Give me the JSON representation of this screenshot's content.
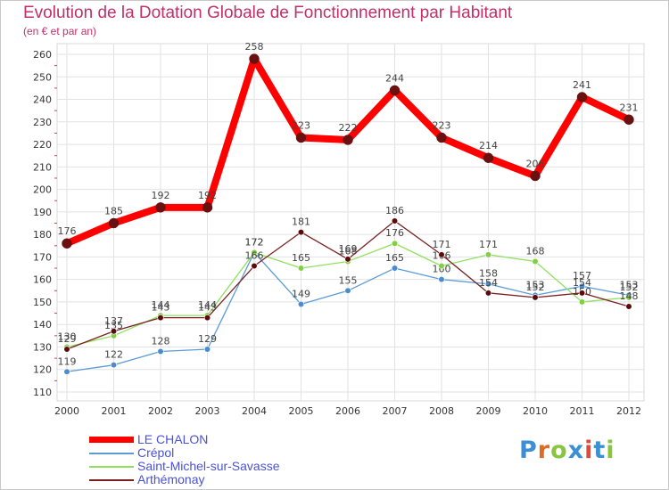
{
  "header": {
    "title": "Evolution de la Dotation Globale de Fonctionnement par Habitant",
    "subtitle": "(en € et par an)"
  },
  "logo": {
    "text": "Proxiti",
    "colors": [
      "#3a8fd6",
      "#e06a20",
      "#8ac540",
      "#3a8fd6",
      "#e04a3a",
      "#3a8fd6",
      "#8ac540"
    ]
  },
  "chart_data": {
    "type": "line",
    "x": [
      "2000",
      "2001",
      "2002",
      "2003",
      "2004",
      "2005",
      "2006",
      "2007",
      "2008",
      "2009",
      "2010",
      "2011",
      "2012"
    ],
    "ylim": [
      110,
      260
    ],
    "yticks": [
      110,
      120,
      130,
      140,
      150,
      160,
      170,
      180,
      190,
      200,
      210,
      220,
      230,
      240,
      250,
      260
    ],
    "grid": true,
    "legend": "bottom-left",
    "series": [
      {
        "name": "LE CHALON",
        "values": [
          176,
          185,
          192,
          192,
          258,
          223,
          222,
          244,
          223,
          214,
          206,
          241,
          231
        ],
        "line_color": "#ff0000",
        "marker_color": "#6b1010",
        "bold": true
      },
      {
        "name": "Crépol",
        "values": [
          119,
          122,
          128,
          129,
          172,
          149,
          155,
          165,
          160,
          158,
          153,
          157,
          153
        ],
        "line_color": "#5b9bd5",
        "marker_color": "#4a8ccf",
        "bold": false
      },
      {
        "name": "Saint-Michel-sur-Savasse",
        "values": [
          130,
          135,
          144,
          144,
          172,
          165,
          168,
          176,
          166,
          171,
          168,
          150,
          152
        ],
        "line_color": "#90e060",
        "marker_color": "#80d040",
        "bold": false
      },
      {
        "name": "Arthémonay",
        "values": [
          129,
          137,
          143,
          143,
          166,
          181,
          169,
          186,
          171,
          154,
          152,
          154,
          148
        ],
        "line_color": "#7a2020",
        "marker_color": "#5a0c0c",
        "bold": false
      }
    ]
  }
}
